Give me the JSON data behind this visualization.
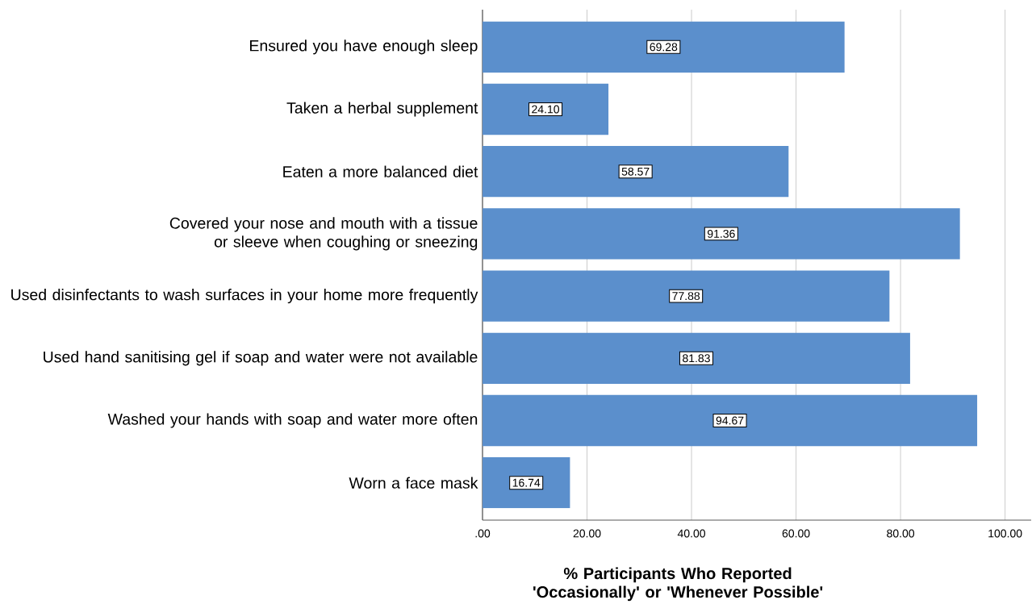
{
  "chart_data": {
    "type": "bar",
    "orientation": "horizontal",
    "xlabel": "% Participants Who Reported 'Occasionally' or 'Whenever Possible'",
    "categories": [
      "Ensured you have enough sleep",
      "Taken a herbal supplement",
      "Eaten a more balanced diet",
      "Covered your nose and mouth with a tissue or sleeve when coughing or sneezing",
      "Used disinfectants to wash surfaces in your home more frequently",
      "Used hand sanitising gel if soap and water were not available",
      "Washed your hands with soap and water more often",
      "Worn a face mask"
    ],
    "values": [
      69.28,
      24.1,
      58.57,
      91.36,
      77.88,
      81.83,
      94.67,
      16.74
    ],
    "value_labels": [
      "69.28",
      "24.10",
      "58.57",
      "91.36",
      "77.88",
      "81.83",
      "94.67",
      "16.74"
    ],
    "color": "#5b8fcc",
    "xlim": [
      0,
      105
    ],
    "xticks": [
      {
        "value": 0,
        "label": ".00"
      },
      {
        "value": 20,
        "label": "20.00"
      },
      {
        "value": 40,
        "label": "40.00"
      },
      {
        "value": 60,
        "label": "60.00"
      },
      {
        "value": 80,
        "label": "80.00"
      },
      {
        "value": 100,
        "label": "100.00"
      }
    ],
    "grid": "x"
  }
}
